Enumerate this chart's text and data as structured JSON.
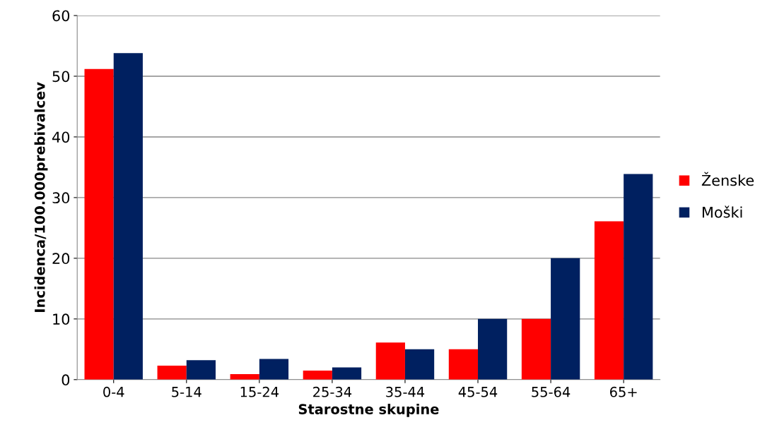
{
  "chart_data": {
    "type": "bar",
    "xlabel": "Starostne skupine",
    "ylabel": "Incidenca/100.000prebivalcev",
    "categories": [
      "0-4",
      "5-14",
      "15-24",
      "25-34",
      "35-44",
      "45-54",
      "55-64",
      "65+"
    ],
    "series": [
      {
        "name": "Ženske",
        "color": "#ff0000",
        "values": [
          51.2,
          2.3,
          0.9,
          1.5,
          6.1,
          5.0,
          10.0,
          26.1
        ]
      },
      {
        "name": "Moški",
        "color": "#002060",
        "values": [
          53.8,
          3.2,
          3.4,
          2.0,
          5.0,
          10.0,
          20.0,
          33.9
        ]
      }
    ],
    "ylim": [
      0,
      60
    ],
    "yticks": [
      0,
      10,
      20,
      30,
      40,
      50,
      60
    ],
    "grid": "y",
    "legend": "right"
  }
}
